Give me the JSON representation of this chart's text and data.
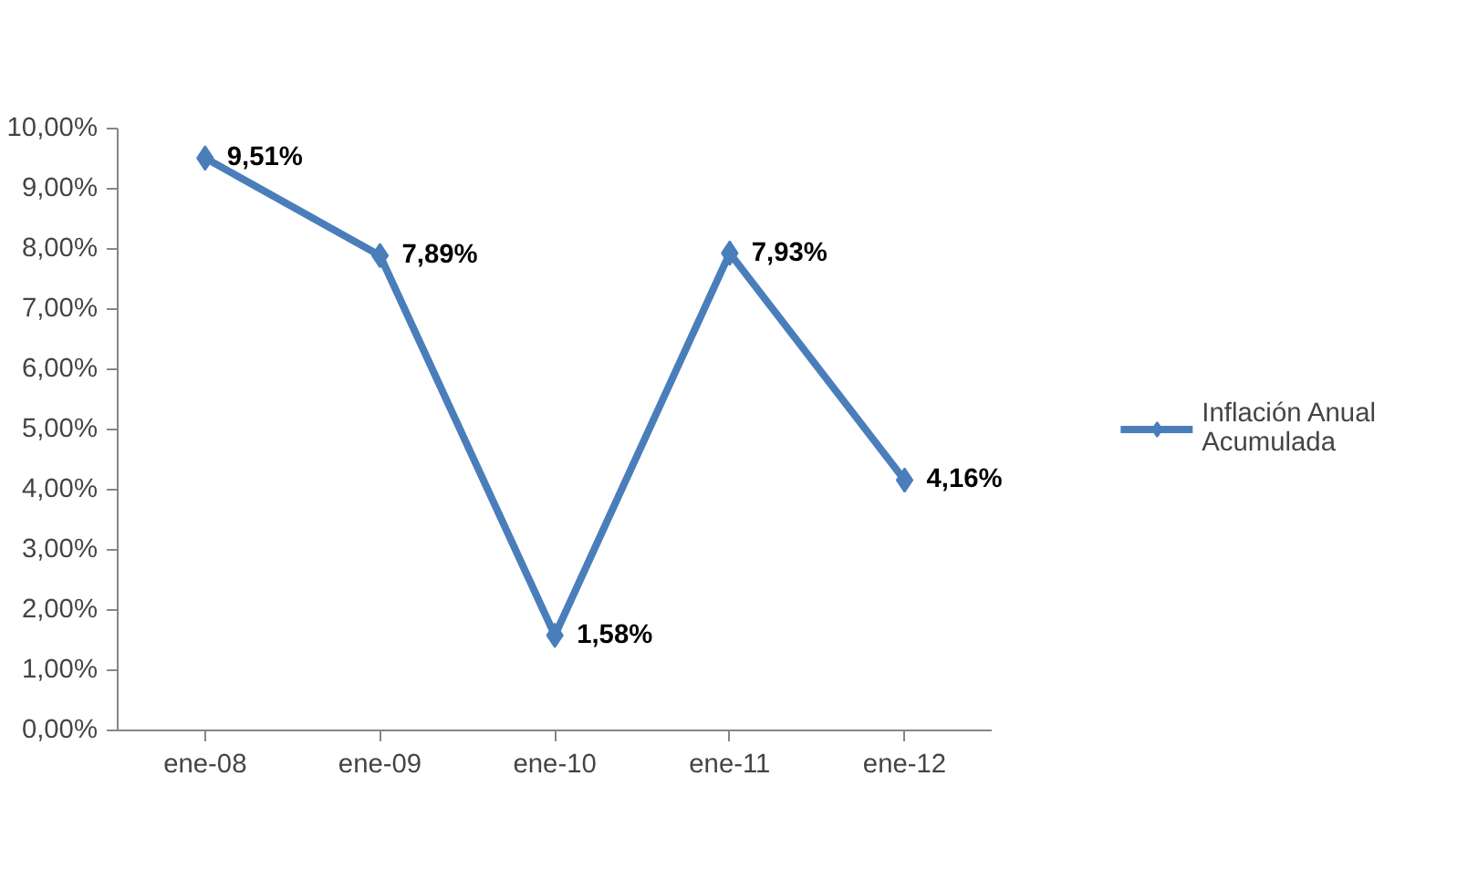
{
  "chart_data": {
    "type": "line",
    "categories": [
      "ene-08",
      "ene-09",
      "ene-10",
      "ene-11",
      "ene-12"
    ],
    "series": [
      {
        "name": "Inflación Anual Acumulada",
        "color": "#4a7ebb",
        "values": [
          9.51,
          7.89,
          1.58,
          7.93,
          4.16
        ],
        "value_labels": [
          "9,51%",
          "7,89%",
          "1,58%",
          "7,93%",
          "4,16%"
        ]
      }
    ],
    "ylim": [
      0,
      10
    ],
    "yticks": [
      {
        "value": 0,
        "label": "0,00%"
      },
      {
        "value": 1,
        "label": "1,00%"
      },
      {
        "value": 2,
        "label": "2,00%"
      },
      {
        "value": 3,
        "label": "3,00%"
      },
      {
        "value": 4,
        "label": "4,00%"
      },
      {
        "value": 5,
        "label": "5,00%"
      },
      {
        "value": 6,
        "label": "6,00%"
      },
      {
        "value": 7,
        "label": "7,00%"
      },
      {
        "value": 8,
        "label": "8,00%"
      },
      {
        "value": 9,
        "label": "9,00%"
      },
      {
        "value": 10,
        "label": "10,00%"
      }
    ],
    "marker": "diamond",
    "grid": false,
    "legend": "right"
  }
}
